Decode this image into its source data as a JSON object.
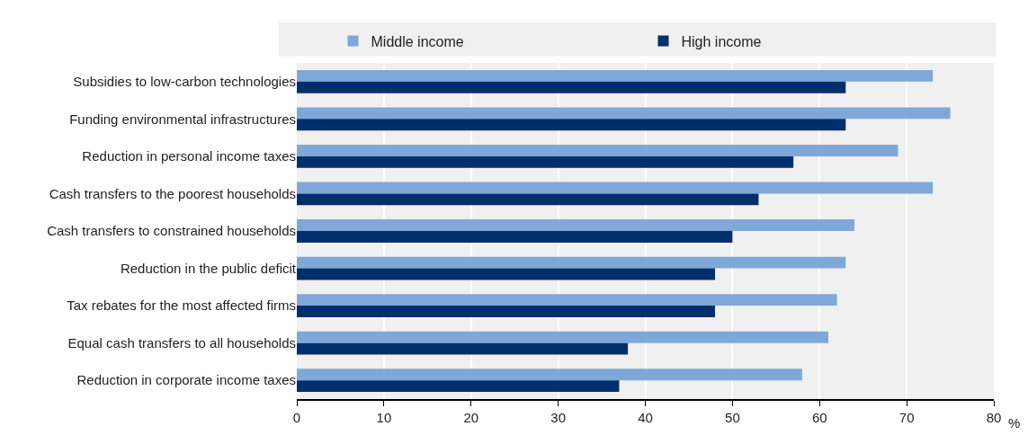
{
  "chart_data": {
    "type": "bar",
    "orientation": "horizontal",
    "xlabel": "%",
    "categories": [
      "Subsidies to low-carbon technologies",
      "Funding environmental infrastructures",
      "Reduction in personal income taxes",
      "Cash transfers to the poorest households",
      "Cash transfers to constrained households",
      "Reduction in the public deficit",
      "Tax rebates for the most affected firms",
      "Equal cash transfers to all households",
      "Reduction in corporate income taxes"
    ],
    "series": [
      {
        "name": "Middle income",
        "color": "#7fa8d9",
        "values": [
          73,
          75,
          69,
          73,
          64,
          63,
          62,
          61,
          58
        ]
      },
      {
        "name": "High income",
        "color": "#002f6c",
        "values": [
          63,
          63,
          57,
          53,
          50,
          48,
          48,
          38,
          37
        ]
      }
    ],
    "xlim": [
      0,
      80
    ],
    "xticks": [
      0,
      10,
      20,
      30,
      40,
      50,
      60,
      70,
      80
    ],
    "grid": "x",
    "legend": "top"
  }
}
